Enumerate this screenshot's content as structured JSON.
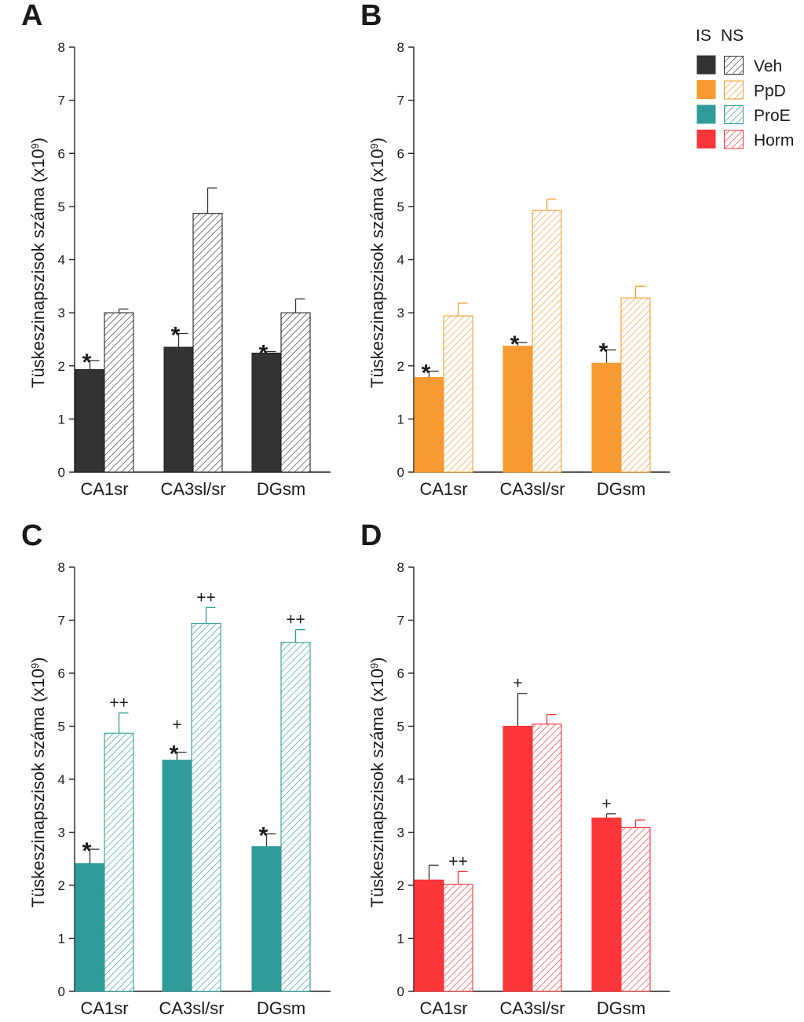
{
  "legend": {
    "header_is": "IS",
    "header_ns": "NS",
    "entries": [
      {
        "label": "Veh",
        "color": "#333333"
      },
      {
        "label": "PpD",
        "color": "#f79a31"
      },
      {
        "label": "ProE",
        "color": "#309c9a"
      },
      {
        "label": "Horm",
        "color": "#fb3639"
      }
    ]
  },
  "chart_data": [
    {
      "panel": "A",
      "type": "bar",
      "color": "#333333",
      "ylabel": "Tüskeszinapszisok száma (x10",
      "ylabel_sup": "9",
      "ylabel_close": ")",
      "ylim": [
        0,
        8
      ],
      "yticks": [
        "0",
        "1",
        "2",
        "3",
        "4",
        "5",
        "6",
        "7",
        "8"
      ],
      "categories": [
        "CA1sr",
        "CA3sl/sr",
        "DGsm"
      ],
      "series": [
        {
          "name": "IS",
          "values": [
            1.93,
            2.35,
            2.24
          ],
          "errors": [
            0.17,
            0.26,
            0.03
          ],
          "marks": [
            "*",
            "*",
            "*"
          ]
        },
        {
          "name": "NS",
          "values": [
            3.0,
            4.87,
            3.0
          ],
          "errors": [
            0.07,
            0.48,
            0.26
          ],
          "marks": [
            "",
            "",
            ""
          ]
        }
      ]
    },
    {
      "panel": "B",
      "type": "bar",
      "color": "#f79a31",
      "ylabel": "Tüskeszinapszisok száma (x10",
      "ylabel_sup": "9",
      "ylabel_close": ")",
      "ylim": [
        0,
        8
      ],
      "yticks": [
        "0",
        "1",
        "2",
        "3",
        "4",
        "5",
        "6",
        "7",
        "8"
      ],
      "categories": [
        "CA1sr",
        "CA3sl/sr",
        "DGsm"
      ],
      "series": [
        {
          "name": "IS",
          "values": [
            1.78,
            2.37,
            2.05
          ],
          "errors": [
            0.12,
            0.07,
            0.25
          ],
          "marks": [
            "*",
            "*",
            "*"
          ]
        },
        {
          "name": "NS",
          "values": [
            2.94,
            4.93,
            3.28
          ],
          "errors": [
            0.24,
            0.21,
            0.22
          ],
          "marks": [
            "",
            "",
            ""
          ]
        }
      ]
    },
    {
      "panel": "C",
      "type": "bar",
      "color": "#309c9a",
      "ylabel": "Tüskeszinapszisok száma (x10",
      "ylabel_sup": "9",
      "ylabel_close": ")",
      "ylim": [
        0,
        8
      ],
      "yticks": [
        "0",
        "1",
        "2",
        "3",
        "4",
        "5",
        "6",
        "7",
        "8"
      ],
      "categories": [
        "CA1sr",
        "CA3sl/sr",
        "DGsm"
      ],
      "series": [
        {
          "name": "IS",
          "values": [
            2.41,
            4.36,
            2.73
          ],
          "errors": [
            0.27,
            0.15,
            0.24
          ],
          "marks": [
            "*",
            "*+",
            "*"
          ]
        },
        {
          "name": "NS",
          "values": [
            4.87,
            6.94,
            6.58
          ],
          "errors": [
            0.38,
            0.3,
            0.24
          ],
          "marks": [
            "++",
            "++",
            "++"
          ]
        }
      ]
    },
    {
      "panel": "D",
      "type": "bar",
      "color": "#fb3639",
      "ylabel": "Tüskeszinapszisok száma (x10",
      "ylabel_sup": "9",
      "ylabel_close": ")",
      "ylim": [
        0,
        8
      ],
      "yticks": [
        "0",
        "1",
        "2",
        "3",
        "4",
        "5",
        "6",
        "7",
        "8"
      ],
      "categories": [
        "CA1sr",
        "CA3sl/sr",
        "DGsm"
      ],
      "series": [
        {
          "name": "IS",
          "values": [
            2.1,
            5.0,
            3.27
          ],
          "errors": [
            0.28,
            0.62,
            0.08
          ],
          "marks": [
            "",
            "+",
            "+"
          ]
        },
        {
          "name": "NS",
          "values": [
            2.02,
            5.04,
            3.09
          ],
          "errors": [
            0.24,
            0.18,
            0.14
          ],
          "marks": [
            "++",
            "",
            ""
          ]
        }
      ]
    }
  ]
}
